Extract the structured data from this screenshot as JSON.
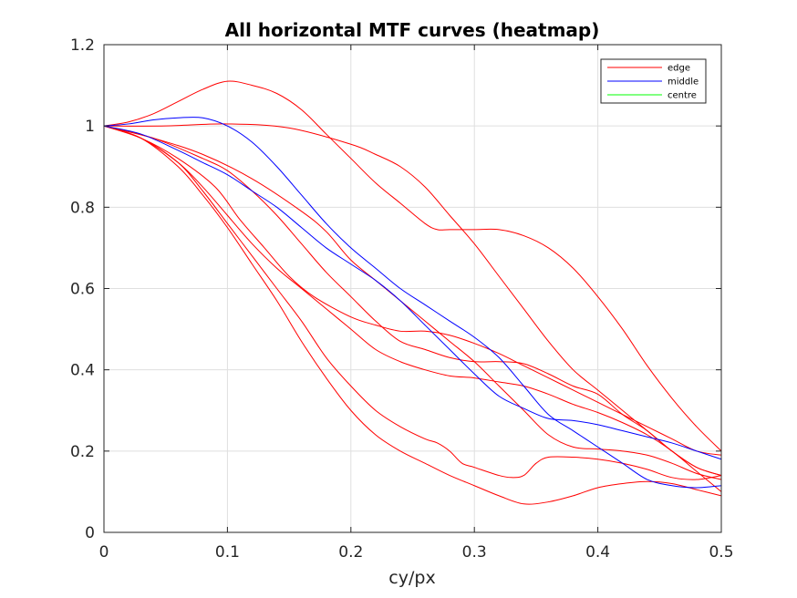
{
  "chart_data": {
    "type": "line",
    "title": "All horizontal MTF curves (heatmap)",
    "xlabel": "cy/px",
    "ylabel": "",
    "xlim": [
      0,
      0.5
    ],
    "ylim": [
      0,
      1.2
    ],
    "xticks": [
      "0",
      "0.1",
      "0.2",
      "0.3",
      "0.4",
      "0.5"
    ],
    "yticks": [
      "0",
      "0.2",
      "0.4",
      "0.6",
      "0.8",
      "1",
      "1.2"
    ],
    "grid": true,
    "legend_position": "top-right",
    "legend": [
      {
        "label": "edge",
        "color": "#ff0000"
      },
      {
        "label": "middle",
        "color": "#0000ff"
      },
      {
        "label": "centre",
        "color": "#00ff00"
      }
    ],
    "series": [
      {
        "group": "edge",
        "color": "#ff0000",
        "points": [
          [
            0,
            1
          ],
          [
            0.02,
            1.01
          ],
          [
            0.04,
            1.03
          ],
          [
            0.06,
            1.06
          ],
          [
            0.08,
            1.09
          ],
          [
            0.1,
            1.11
          ],
          [
            0.12,
            1.1
          ],
          [
            0.14,
            1.08
          ],
          [
            0.16,
            1.04
          ],
          [
            0.18,
            0.98
          ],
          [
            0.2,
            0.92
          ],
          [
            0.22,
            0.86
          ],
          [
            0.24,
            0.81
          ],
          [
            0.26,
            0.76
          ],
          [
            0.27,
            0.745
          ],
          [
            0.28,
            0.745
          ],
          [
            0.3,
            0.745
          ],
          [
            0.32,
            0.745
          ],
          [
            0.34,
            0.73
          ],
          [
            0.36,
            0.7
          ],
          [
            0.38,
            0.65
          ],
          [
            0.4,
            0.58
          ],
          [
            0.42,
            0.5
          ],
          [
            0.44,
            0.41
          ],
          [
            0.46,
            0.33
          ],
          [
            0.48,
            0.26
          ],
          [
            0.5,
            0.2
          ]
        ]
      },
      {
        "group": "edge",
        "color": "#ff0000",
        "points": [
          [
            0,
            1
          ],
          [
            0.05,
            1.0
          ],
          [
            0.1,
            1.005
          ],
          [
            0.15,
            0.995
          ],
          [
            0.2,
            0.955
          ],
          [
            0.22,
            0.93
          ],
          [
            0.24,
            0.9
          ],
          [
            0.26,
            0.85
          ],
          [
            0.28,
            0.78
          ],
          [
            0.3,
            0.71
          ],
          [
            0.32,
            0.63
          ],
          [
            0.34,
            0.55
          ],
          [
            0.36,
            0.47
          ],
          [
            0.38,
            0.4
          ],
          [
            0.4,
            0.35
          ],
          [
            0.42,
            0.3
          ],
          [
            0.44,
            0.25
          ],
          [
            0.46,
            0.2
          ],
          [
            0.48,
            0.16
          ],
          [
            0.5,
            0.14
          ]
        ]
      },
      {
        "group": "edge",
        "color": "#ff0000",
        "points": [
          [
            0,
            1
          ],
          [
            0.04,
            0.97
          ],
          [
            0.08,
            0.93
          ],
          [
            0.12,
            0.87
          ],
          [
            0.16,
            0.79
          ],
          [
            0.18,
            0.74
          ],
          [
            0.2,
            0.67
          ],
          [
            0.22,
            0.62
          ],
          [
            0.24,
            0.57
          ],
          [
            0.26,
            0.52
          ],
          [
            0.28,
            0.47
          ],
          [
            0.3,
            0.42
          ],
          [
            0.32,
            0.36
          ],
          [
            0.34,
            0.3
          ],
          [
            0.36,
            0.24
          ],
          [
            0.38,
            0.21
          ],
          [
            0.4,
            0.205
          ],
          [
            0.42,
            0.2
          ],
          [
            0.44,
            0.19
          ],
          [
            0.46,
            0.17
          ],
          [
            0.48,
            0.145
          ],
          [
            0.5,
            0.13
          ]
        ]
      },
      {
        "group": "edge",
        "color": "#ff0000",
        "points": [
          [
            0,
            1
          ],
          [
            0.04,
            0.97
          ],
          [
            0.08,
            0.92
          ],
          [
            0.1,
            0.89
          ],
          [
            0.12,
            0.84
          ],
          [
            0.14,
            0.78
          ],
          [
            0.16,
            0.71
          ],
          [
            0.18,
            0.64
          ],
          [
            0.2,
            0.58
          ],
          [
            0.22,
            0.52
          ],
          [
            0.24,
            0.47
          ],
          [
            0.26,
            0.45
          ],
          [
            0.28,
            0.43
          ],
          [
            0.3,
            0.42
          ],
          [
            0.32,
            0.42
          ],
          [
            0.34,
            0.415
          ],
          [
            0.36,
            0.39
          ],
          [
            0.38,
            0.36
          ],
          [
            0.4,
            0.34
          ],
          [
            0.42,
            0.29
          ],
          [
            0.44,
            0.25
          ],
          [
            0.46,
            0.2
          ],
          [
            0.48,
            0.16
          ],
          [
            0.5,
            0.14
          ]
        ]
      },
      {
        "group": "edge",
        "color": "#ff0000",
        "points": [
          [
            0,
            1
          ],
          [
            0.03,
            0.97
          ],
          [
            0.06,
            0.92
          ],
          [
            0.09,
            0.85
          ],
          [
            0.11,
            0.77
          ],
          [
            0.13,
            0.7
          ],
          [
            0.15,
            0.63
          ],
          [
            0.17,
            0.58
          ],
          [
            0.2,
            0.53
          ],
          [
            0.22,
            0.51
          ],
          [
            0.24,
            0.495
          ],
          [
            0.26,
            0.495
          ],
          [
            0.28,
            0.485
          ],
          [
            0.3,
            0.465
          ],
          [
            0.32,
            0.44
          ],
          [
            0.34,
            0.41
          ],
          [
            0.36,
            0.38
          ],
          [
            0.38,
            0.35
          ],
          [
            0.4,
            0.32
          ],
          [
            0.42,
            0.29
          ],
          [
            0.44,
            0.26
          ],
          [
            0.46,
            0.23
          ],
          [
            0.48,
            0.2
          ],
          [
            0.5,
            0.19
          ]
        ]
      },
      {
        "group": "edge",
        "color": "#ff0000",
        "points": [
          [
            0,
            1
          ],
          [
            0.03,
            0.97
          ],
          [
            0.06,
            0.91
          ],
          [
            0.08,
            0.85
          ],
          [
            0.1,
            0.78
          ],
          [
            0.12,
            0.71
          ],
          [
            0.14,
            0.65
          ],
          [
            0.16,
            0.6
          ],
          [
            0.18,
            0.55
          ],
          [
            0.2,
            0.5
          ],
          [
            0.22,
            0.45
          ],
          [
            0.24,
            0.42
          ],
          [
            0.26,
            0.4
          ],
          [
            0.28,
            0.385
          ],
          [
            0.3,
            0.38
          ],
          [
            0.32,
            0.37
          ],
          [
            0.34,
            0.36
          ],
          [
            0.36,
            0.34
          ],
          [
            0.38,
            0.315
          ],
          [
            0.4,
            0.295
          ],
          [
            0.42,
            0.27
          ],
          [
            0.44,
            0.24
          ],
          [
            0.46,
            0.2
          ],
          [
            0.48,
            0.15
          ],
          [
            0.5,
            0.1
          ]
        ]
      },
      {
        "group": "edge",
        "color": "#ff0000",
        "points": [
          [
            0,
            1
          ],
          [
            0.03,
            0.97
          ],
          [
            0.06,
            0.91
          ],
          [
            0.08,
            0.84
          ],
          [
            0.1,
            0.76
          ],
          [
            0.12,
            0.68
          ],
          [
            0.14,
            0.6
          ],
          [
            0.16,
            0.52
          ],
          [
            0.18,
            0.43
          ],
          [
            0.2,
            0.36
          ],
          [
            0.22,
            0.3
          ],
          [
            0.24,
            0.26
          ],
          [
            0.26,
            0.23
          ],
          [
            0.27,
            0.22
          ],
          [
            0.28,
            0.2
          ],
          [
            0.29,
            0.17
          ],
          [
            0.3,
            0.16
          ],
          [
            0.32,
            0.14
          ],
          [
            0.33,
            0.135
          ],
          [
            0.34,
            0.14
          ],
          [
            0.35,
            0.17
          ],
          [
            0.36,
            0.185
          ],
          [
            0.38,
            0.185
          ],
          [
            0.4,
            0.18
          ],
          [
            0.42,
            0.17
          ],
          [
            0.44,
            0.155
          ],
          [
            0.46,
            0.135
          ],
          [
            0.48,
            0.13
          ],
          [
            0.5,
            0.14
          ]
        ]
      },
      {
        "group": "edge",
        "color": "#ff0000",
        "points": [
          [
            0,
            1
          ],
          [
            0.03,
            0.97
          ],
          [
            0.06,
            0.9
          ],
          [
            0.08,
            0.83
          ],
          [
            0.1,
            0.75
          ],
          [
            0.12,
            0.66
          ],
          [
            0.14,
            0.57
          ],
          [
            0.16,
            0.47
          ],
          [
            0.18,
            0.38
          ],
          [
            0.2,
            0.3
          ],
          [
            0.22,
            0.24
          ],
          [
            0.24,
            0.2
          ],
          [
            0.26,
            0.17
          ],
          [
            0.28,
            0.14
          ],
          [
            0.3,
            0.115
          ],
          [
            0.32,
            0.09
          ],
          [
            0.34,
            0.07
          ],
          [
            0.36,
            0.075
          ],
          [
            0.38,
            0.09
          ],
          [
            0.4,
            0.11
          ],
          [
            0.42,
            0.12
          ],
          [
            0.44,
            0.125
          ],
          [
            0.46,
            0.12
          ],
          [
            0.48,
            0.105
          ],
          [
            0.5,
            0.09
          ]
        ]
      },
      {
        "group": "middle",
        "color": "#0000ff",
        "points": [
          [
            0,
            1
          ],
          [
            0.02,
            1.005
          ],
          [
            0.04,
            1.015
          ],
          [
            0.06,
            1.02
          ],
          [
            0.08,
            1.02
          ],
          [
            0.1,
            1.0
          ],
          [
            0.12,
            0.96
          ],
          [
            0.14,
            0.9
          ],
          [
            0.16,
            0.83
          ],
          [
            0.18,
            0.76
          ],
          [
            0.2,
            0.7
          ],
          [
            0.22,
            0.65
          ],
          [
            0.24,
            0.6
          ],
          [
            0.26,
            0.56
          ],
          [
            0.28,
            0.52
          ],
          [
            0.3,
            0.48
          ],
          [
            0.32,
            0.43
          ],
          [
            0.34,
            0.36
          ],
          [
            0.36,
            0.29
          ],
          [
            0.38,
            0.25
          ],
          [
            0.4,
            0.21
          ],
          [
            0.42,
            0.17
          ],
          [
            0.44,
            0.13
          ],
          [
            0.46,
            0.115
          ],
          [
            0.48,
            0.11
          ],
          [
            0.5,
            0.115
          ]
        ]
      },
      {
        "group": "middle",
        "color": "#0000ff",
        "points": [
          [
            0,
            1
          ],
          [
            0.03,
            0.98
          ],
          [
            0.06,
            0.94
          ],
          [
            0.08,
            0.91
          ],
          [
            0.1,
            0.88
          ],
          [
            0.12,
            0.84
          ],
          [
            0.14,
            0.8
          ],
          [
            0.16,
            0.75
          ],
          [
            0.18,
            0.7
          ],
          [
            0.2,
            0.66
          ],
          [
            0.22,
            0.62
          ],
          [
            0.24,
            0.57
          ],
          [
            0.26,
            0.51
          ],
          [
            0.28,
            0.45
          ],
          [
            0.3,
            0.39
          ],
          [
            0.32,
            0.335
          ],
          [
            0.34,
            0.305
          ],
          [
            0.36,
            0.28
          ],
          [
            0.38,
            0.275
          ],
          [
            0.4,
            0.265
          ],
          [
            0.42,
            0.25
          ],
          [
            0.44,
            0.235
          ],
          [
            0.46,
            0.22
          ],
          [
            0.48,
            0.2
          ],
          [
            0.5,
            0.18
          ]
        ]
      }
    ]
  }
}
